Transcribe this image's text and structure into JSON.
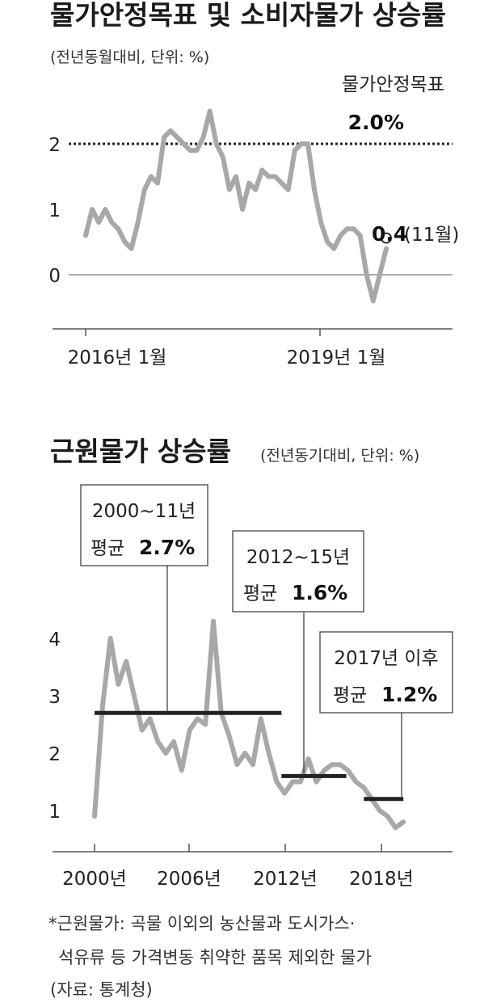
{
  "chart_data": [
    {
      "type": "line",
      "title": "물가안정목표 및 소비자물가 상승률",
      "subtitle": "(전년동월대비, 단위: %)",
      "x_labels": [
        "2016년 1월",
        "2019년 1월"
      ],
      "y_ticks": [
        "0",
        "1",
        "2"
      ],
      "ylim": [
        -0.4,
        2.6
      ],
      "target": {
        "label": "물가안정목표",
        "value_label": "2.0%",
        "value": 2.0
      },
      "last_point": {
        "value_label": "0.4",
        "month_label": "(11월)"
      },
      "series": [
        {
          "x": [
            "2016-01",
            "2016-02",
            "2016-03",
            "2016-04",
            "2016-05",
            "2016-06",
            "2016-07",
            "2016-08",
            "2016-09",
            "2016-10",
            "2016-11",
            "2016-12",
            "2017-01",
            "2017-02",
            "2017-03",
            "2017-04",
            "2017-05",
            "2017-06",
            "2017-07",
            "2017-08",
            "2017-09",
            "2017-10",
            "2017-11",
            "2017-12",
            "2018-01",
            "2018-02",
            "2018-03",
            "2018-04",
            "2018-05",
            "2018-06",
            "2018-07",
            "2018-08",
            "2018-09",
            "2018-10",
            "2018-11",
            "2018-12",
            "2019-01",
            "2019-02",
            "2019-03",
            "2019-04",
            "2019-05",
            "2019-06",
            "2019-07",
            "2019-08",
            "2019-09",
            "2019-10",
            "2019-11"
          ],
          "values": [
            0.6,
            1.0,
            0.8,
            1.0,
            0.8,
            0.7,
            0.5,
            0.4,
            0.8,
            1.3,
            1.5,
            1.4,
            2.1,
            2.2,
            2.1,
            2.0,
            1.9,
            1.9,
            2.1,
            2.5,
            2.0,
            1.8,
            1.3,
            1.5,
            1.0,
            1.4,
            1.3,
            1.6,
            1.5,
            1.5,
            1.4,
            1.3,
            1.9,
            2.0,
            2.0,
            1.3,
            0.8,
            0.5,
            0.4,
            0.6,
            0.7,
            0.7,
            0.6,
            0.0,
            -0.4,
            0.0,
            0.4
          ]
        }
      ]
    },
    {
      "type": "line",
      "title": "근원물가 상승률",
      "subtitle": "(전년동기대비, 단위: %)",
      "x_labels": [
        "2000년",
        "2006년",
        "2012년",
        "2018년"
      ],
      "y_ticks": [
        "1",
        "2",
        "3",
        "4"
      ],
      "ylim": [
        0.3,
        4.5
      ],
      "series": [
        {
          "x": [
            2000.0,
            2000.5,
            2001.0,
            2001.5,
            2002.0,
            2002.5,
            2003.0,
            2003.5,
            2004.0,
            2004.5,
            2005.0,
            2005.5,
            2006.0,
            2006.5,
            2007.0,
            2007.5,
            2008.0,
            2008.5,
            2009.0,
            2009.5,
            2010.0,
            2010.5,
            2011.0,
            2011.5,
            2012.0,
            2012.5,
            2013.0,
            2013.5,
            2014.0,
            2014.5,
            2015.0,
            2015.5,
            2016.0,
            2016.5,
            2017.0,
            2017.5,
            2018.0,
            2018.5,
            2019.0,
            2019.5
          ],
          "values": [
            0.9,
            2.8,
            4.0,
            3.2,
            3.6,
            3.0,
            2.4,
            2.6,
            2.2,
            2.0,
            2.2,
            1.7,
            2.4,
            2.6,
            2.5,
            4.3,
            2.7,
            2.3,
            1.8,
            2.0,
            1.8,
            2.6,
            2.0,
            1.5,
            1.3,
            1.5,
            1.5,
            1.9,
            1.5,
            1.7,
            1.8,
            1.8,
            1.7,
            1.5,
            1.4,
            1.2,
            1.0,
            0.9,
            0.7,
            0.8
          ]
        }
      ],
      "averages": [
        {
          "period_label": "2000~11년",
          "avg_label": "평균",
          "value_label": "2.7%",
          "from": 2000.0,
          "to": 2011.8,
          "value": 2.7
        },
        {
          "period_label": "2012~15년",
          "avg_label": "평균",
          "value_label": "1.6%",
          "from": 2011.8,
          "to": 2015.9,
          "value": 1.6
        },
        {
          "period_label": "2017년 이후",
          "avg_label": "평균",
          "value_label": "1.2%",
          "from": 2017.0,
          "to": 2019.5,
          "value": 1.2
        }
      ]
    }
  ],
  "footnote": {
    "line1": "*근원물가: 곡물 이외의 농산물과 도시가스·",
    "line2": "석유류 등 가격변동 취약한 품목 제외한 물가",
    "line3": "(자료: 통계청)"
  },
  "colors": {
    "line": "#a8a8a8",
    "avg": "#222222",
    "text": "#222222"
  }
}
